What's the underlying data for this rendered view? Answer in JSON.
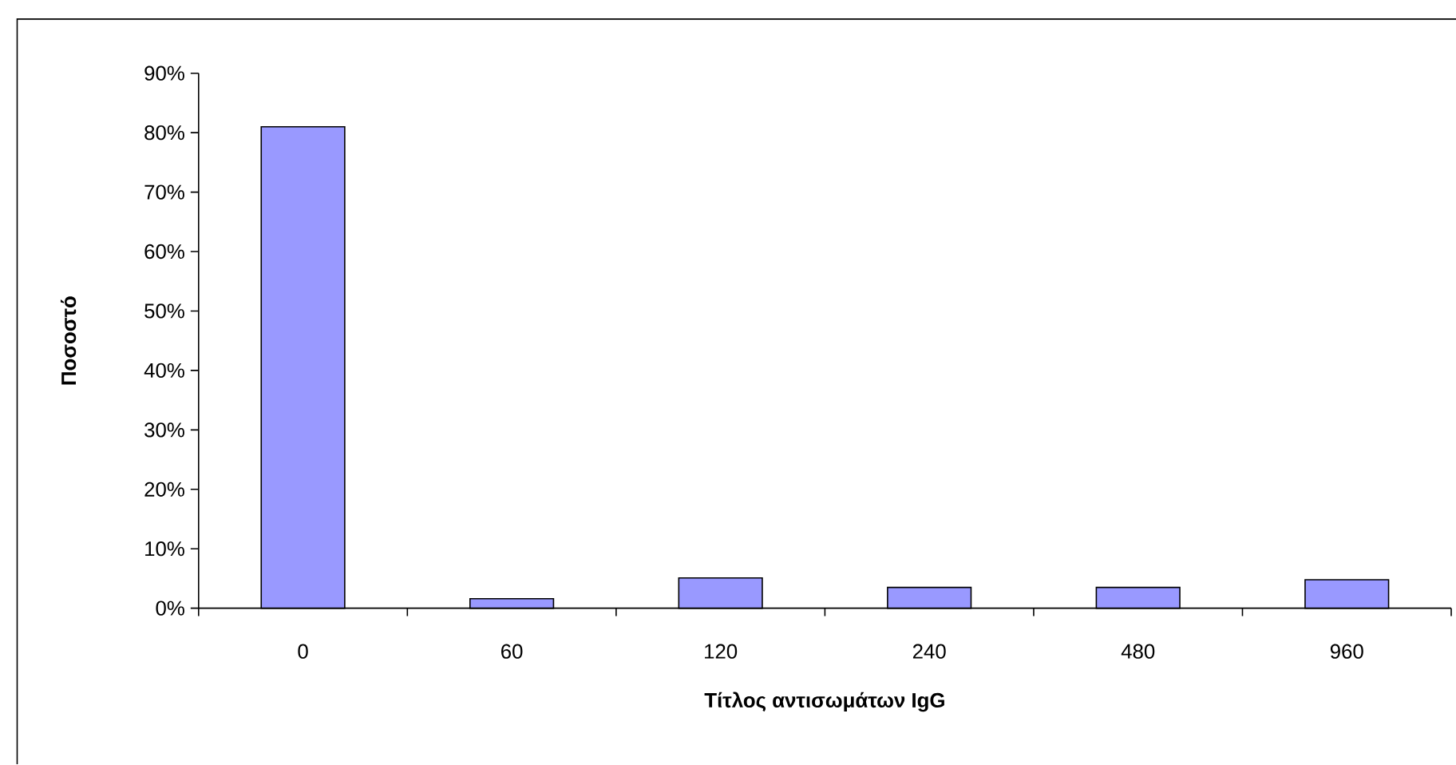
{
  "chart_data": {
    "type": "bar",
    "xlabel": "Τίτλος αντισωμάτων IgG",
    "ylabel": "Ποσοστό",
    "categories": [
      "0",
      "60",
      "120",
      "240",
      "480",
      "960"
    ],
    "values": [
      81,
      1.6,
      5.1,
      3.5,
      3.5,
      4.8
    ],
    "color": "#9999ff",
    "ylim": [
      0,
      90
    ],
    "yticks": [
      {
        "value": 0,
        "label": "0%"
      },
      {
        "value": 10,
        "label": "10%"
      },
      {
        "value": 20,
        "label": "20%"
      },
      {
        "value": 30,
        "label": "30%"
      },
      {
        "value": 40,
        "label": "40%"
      },
      {
        "value": 50,
        "label": "50%"
      },
      {
        "value": 60,
        "label": "60%"
      },
      {
        "value": 70,
        "label": "70%"
      },
      {
        "value": 80,
        "label": "80%"
      },
      {
        "value": 90,
        "label": "90%"
      }
    ]
  }
}
